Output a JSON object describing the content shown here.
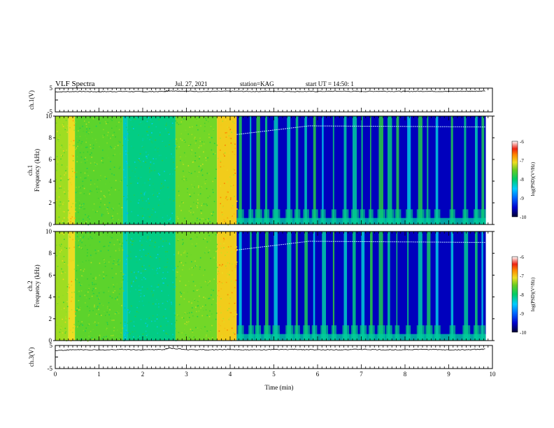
{
  "header": {
    "title": "VLF Spectra",
    "date": "Jul. 27, 2021",
    "station": "station=KAG",
    "start_ut": "start UT =  14:50: 1"
  },
  "colors": {
    "spectrogram_scale": [
      "#000033",
      "#0000cc",
      "#0066ff",
      "#00ccff",
      "#00cc88",
      "#33cc33",
      "#99dd22",
      "#eedd22",
      "#ff8800",
      "#ee2211",
      "#ffffff"
    ]
  },
  "chart_data": [
    {
      "type": "line",
      "panel": "ch1-voltage",
      "ylabel": "ch.1(V)",
      "ylim": [
        -5,
        5
      ],
      "yticks": [
        "5",
        "-5"
      ],
      "xlim": [
        0,
        10
      ],
      "series": [
        {
          "x": [
            0,
            0.5,
            1,
            1.5,
            2,
            2.5,
            2.6,
            3,
            3.5,
            4,
            4.5,
            5,
            5.5,
            6,
            6.5,
            7,
            7.5,
            8,
            8.5,
            9,
            9.5,
            9.85
          ],
          "values": [
            3.4,
            3.6,
            3.5,
            3.6,
            3.5,
            3.6,
            3.9,
            3.7,
            3.6,
            3.7,
            3.6,
            3.7,
            3.6,
            3.6,
            3.7,
            3.6,
            3.7,
            3.6,
            3.7,
            3.6,
            3.7,
            3.8
          ]
        }
      ]
    },
    {
      "type": "heatmap",
      "panel": "ch1-spectrogram",
      "ylabel": "ch.1 Frequency (kHz)",
      "ylim": [
        0,
        10
      ],
      "yticks": [
        "0",
        "2",
        "4",
        "6",
        "8",
        "10"
      ],
      "xlim": [
        0,
        10
      ],
      "colorbar": {
        "label": "log(PSD)(V²/Hz)",
        "range": [
          -10,
          -6
        ],
        "ticks": [
          "-6",
          "-7",
          "-8",
          "-9",
          "-10"
        ]
      },
      "segments": [
        {
          "from": 0.0,
          "to": 0.3,
          "level": -7.3
        },
        {
          "from": 0.3,
          "to": 0.45,
          "level": -6.9
        },
        {
          "from": 0.45,
          "to": 1.55,
          "level": -7.6
        },
        {
          "from": 1.55,
          "to": 1.65,
          "level": -8.4
        },
        {
          "from": 1.65,
          "to": 2.75,
          "level": -8.2
        },
        {
          "from": 2.75,
          "to": 3.7,
          "level": -7.5
        },
        {
          "from": 3.7,
          "to": 4.15,
          "level": -6.8
        },
        {
          "from": 4.15,
          "to": 9.85,
          "level": -9.6
        }
      ],
      "bright_streaks": [
        4.2,
        4.45,
        4.6,
        4.8,
        5.0,
        5.3,
        5.5,
        5.7,
        5.9,
        6.1,
        6.35,
        6.6,
        6.8,
        7.0,
        7.2,
        7.4,
        7.6,
        7.8,
        8.05,
        8.3,
        8.5,
        8.7,
        9.05,
        9.35,
        9.6,
        9.75
      ],
      "tone_line": {
        "x": [
          4.15,
          5.8,
          9.85
        ],
        "values": [
          8.3,
          9.1,
          9.0
        ]
      }
    },
    {
      "type": "heatmap",
      "panel": "ch2-spectrogram",
      "ylabel": "ch.2 Frequency (kHz)",
      "ylim": [
        0,
        10
      ],
      "yticks": [
        "0",
        "2",
        "4",
        "6",
        "8",
        "10"
      ],
      "xlim": [
        0,
        10
      ],
      "colorbar": {
        "label": "log(PSD)(V²/Hz)",
        "range": [
          -10,
          -6
        ],
        "ticks": [
          "-6",
          "-7",
          "-8",
          "-9",
          "-10"
        ]
      },
      "segments": [
        {
          "from": 0.0,
          "to": 0.3,
          "level": -7.3
        },
        {
          "from": 0.3,
          "to": 0.45,
          "level": -6.9
        },
        {
          "from": 0.45,
          "to": 1.55,
          "level": -7.6
        },
        {
          "from": 1.55,
          "to": 1.65,
          "level": -8.4
        },
        {
          "from": 1.65,
          "to": 2.75,
          "level": -8.2
        },
        {
          "from": 2.75,
          "to": 3.7,
          "level": -7.5
        },
        {
          "from": 3.7,
          "to": 4.15,
          "level": -6.8
        },
        {
          "from": 4.15,
          "to": 9.85,
          "level": -9.6
        }
      ],
      "bright_streaks": [
        4.2,
        4.45,
        4.6,
        4.8,
        5.0,
        5.3,
        5.5,
        5.7,
        5.9,
        6.1,
        6.35,
        6.6,
        6.8,
        7.0,
        7.2,
        7.4,
        7.6,
        7.8,
        8.05,
        8.3,
        8.5,
        8.7,
        9.05,
        9.35,
        9.6,
        9.75
      ],
      "tone_line": {
        "x": [
          4.15,
          5.8,
          9.85
        ],
        "values": [
          8.3,
          9.1,
          9.0
        ]
      }
    },
    {
      "type": "line",
      "panel": "ch3-voltage",
      "ylabel": "ch.3(V)",
      "ylim": [
        -5,
        5
      ],
      "yticks": [
        "5",
        "-5"
      ],
      "xlim": [
        0,
        10
      ],
      "xlabel": "Time (min)",
      "xticks": [
        "0",
        "1",
        "2",
        "3",
        "4",
        "5",
        "6",
        "7",
        "8",
        "9",
        "10"
      ],
      "series": [
        {
          "x": [
            0,
            0.5,
            1,
            1.5,
            2,
            2.5,
            2.6,
            3,
            3.5,
            4,
            4.5,
            5,
            5.5,
            6,
            6.5,
            7,
            7.5,
            8,
            8.5,
            9,
            9.5,
            9.85
          ],
          "values": [
            2.8,
            3.2,
            3.0,
            3.3,
            3.1,
            3.3,
            3.9,
            3.2,
            3.1,
            3.3,
            3.1,
            3.2,
            3.3,
            3.1,
            3.2,
            3.3,
            3.1,
            3.2,
            3.3,
            3.1,
            3.2,
            3.4
          ]
        }
      ]
    }
  ]
}
